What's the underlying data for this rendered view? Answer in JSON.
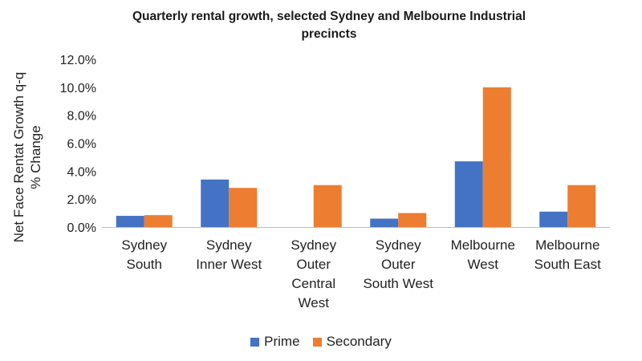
{
  "chart_data": {
    "type": "bar",
    "title_lines": [
      "Quarterly rental growth, selected Sydney and Melbourne  Industrial",
      "precincts"
    ],
    "ylabel_lines": [
      "Net Face Rentat Growth q-q",
      "% Change"
    ],
    "xlabel": "",
    "categories": [
      [
        "Sydney",
        "South"
      ],
      [
        "Sydney",
        "Inner West"
      ],
      [
        "Sydney",
        "Outer",
        "Central",
        "West"
      ],
      [
        "Sydney",
        "Outer",
        "South West"
      ],
      [
        "Melbourne",
        "West"
      ],
      [
        "Melbourne",
        "South East"
      ]
    ],
    "series": [
      {
        "name": "Prime",
        "color": "#4472c4",
        "values": [
          0.8,
          3.4,
          0.0,
          0.6,
          4.7,
          1.1
        ]
      },
      {
        "name": "Secondary",
        "color": "#ed7d31",
        "values": [
          0.85,
          2.8,
          3.0,
          1.0,
          10.0,
          3.0
        ]
      }
    ],
    "ylim": [
      0,
      12
    ],
    "yticks": [
      "0.0%",
      "2.0%",
      "4.0%",
      "6.0%",
      "8.0%",
      "10.0%",
      "12.0%"
    ],
    "grid": false,
    "legend_position": "bottom"
  }
}
